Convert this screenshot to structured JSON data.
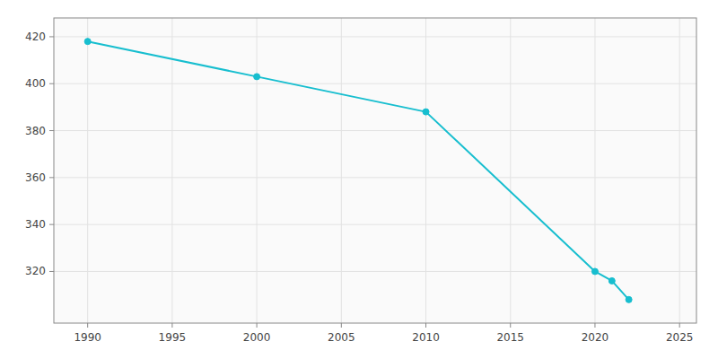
{
  "chart_data": {
    "type": "line",
    "x": [
      1990,
      2000,
      2010,
      2020,
      2021,
      2022
    ],
    "values": [
      418,
      403,
      388,
      320,
      316,
      308
    ],
    "color": "#17becf",
    "marker": "circle",
    "xlim": [
      1988,
      2026
    ],
    "ylim": [
      298,
      428
    ],
    "xticks": [
      1990,
      1995,
      2000,
      2005,
      2010,
      2015,
      2020,
      2025
    ],
    "yticks": [
      320,
      340,
      360,
      380,
      400,
      420
    ],
    "grid": true
  }
}
